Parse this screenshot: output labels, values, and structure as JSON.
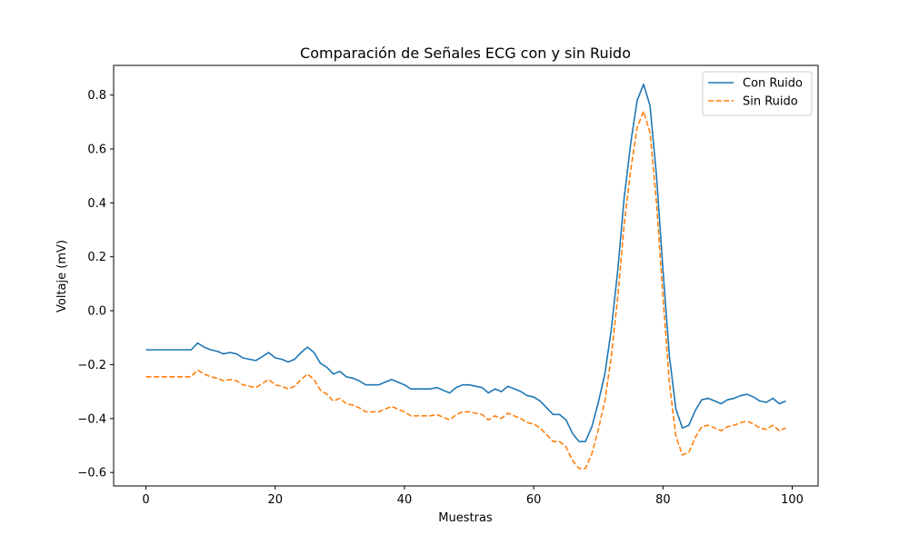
{
  "chart_data": {
    "type": "line",
    "title": "Comparación de Señales ECG con y sin Ruido",
    "xlabel": "Muestras",
    "ylabel": "Voltaje (mV)",
    "xlim": [
      -5,
      104
    ],
    "ylim": [
      -0.65,
      0.91
    ],
    "xticks": [
      0,
      20,
      40,
      60,
      80,
      100
    ],
    "yticks": [
      -0.6,
      -0.4,
      -0.2,
      0.0,
      0.2,
      0.4,
      0.6,
      0.8
    ],
    "ytick_labels": [
      "−0.6",
      "−0.4",
      "−0.2",
      "0.0",
      "0.2",
      "0.4",
      "0.6",
      "0.8"
    ],
    "grid": false,
    "legend_position": "upper right",
    "series": [
      {
        "name": "Con Ruido",
        "color": "#1f77b4",
        "dash": "solid",
        "x": [
          0,
          1,
          2,
          3,
          4,
          5,
          6,
          7,
          8,
          9,
          10,
          11,
          12,
          13,
          14,
          15,
          16,
          17,
          18,
          19,
          20,
          21,
          22,
          23,
          24,
          25,
          26,
          27,
          28,
          29,
          30,
          31,
          32,
          33,
          34,
          35,
          36,
          37,
          38,
          39,
          40,
          41,
          42,
          43,
          44,
          45,
          46,
          47,
          48,
          49,
          50,
          51,
          52,
          53,
          54,
          55,
          56,
          57,
          58,
          59,
          60,
          61,
          62,
          63,
          64,
          65,
          66,
          67,
          68,
          69,
          70,
          71,
          72,
          73,
          74,
          75,
          76,
          77,
          78,
          79,
          80,
          81,
          82,
          83,
          84,
          85,
          86,
          87,
          88,
          89,
          90,
          91,
          92,
          93,
          94,
          95,
          96,
          97,
          98,
          99
        ],
        "y": [
          -0.145,
          -0.145,
          -0.145,
          -0.145,
          -0.145,
          -0.145,
          -0.145,
          -0.145,
          -0.12,
          -0.135,
          -0.145,
          -0.15,
          -0.16,
          -0.155,
          -0.16,
          -0.175,
          -0.18,
          -0.185,
          -0.17,
          -0.155,
          -0.175,
          -0.18,
          -0.19,
          -0.18,
          -0.155,
          -0.135,
          -0.155,
          -0.195,
          -0.21,
          -0.235,
          -0.225,
          -0.245,
          -0.25,
          -0.26,
          -0.275,
          -0.275,
          -0.275,
          -0.265,
          -0.255,
          -0.265,
          -0.275,
          -0.29,
          -0.29,
          -0.29,
          -0.29,
          -0.285,
          -0.295,
          -0.305,
          -0.285,
          -0.275,
          -0.275,
          -0.28,
          -0.285,
          -0.305,
          -0.29,
          -0.3,
          -0.28,
          -0.29,
          -0.3,
          -0.315,
          -0.32,
          -0.335,
          -0.36,
          -0.385,
          -0.385,
          -0.405,
          -0.455,
          -0.485,
          -0.485,
          -0.43,
          -0.34,
          -0.235,
          -0.07,
          0.15,
          0.42,
          0.62,
          0.78,
          0.84,
          0.76,
          0.5,
          0.15,
          -0.17,
          -0.365,
          -0.435,
          -0.425,
          -0.37,
          -0.33,
          -0.325,
          -0.335,
          -0.345,
          -0.33,
          -0.325,
          -0.315,
          -0.31,
          -0.32,
          -0.335,
          -0.34,
          -0.325,
          -0.345,
          -0.335
        ]
      },
      {
        "name": "Sin Ruido",
        "color": "#ff7f0e",
        "dash": "dashed",
        "x": [
          0,
          1,
          2,
          3,
          4,
          5,
          6,
          7,
          8,
          9,
          10,
          11,
          12,
          13,
          14,
          15,
          16,
          17,
          18,
          19,
          20,
          21,
          22,
          23,
          24,
          25,
          26,
          27,
          28,
          29,
          30,
          31,
          32,
          33,
          34,
          35,
          36,
          37,
          38,
          39,
          40,
          41,
          42,
          43,
          44,
          45,
          46,
          47,
          48,
          49,
          50,
          51,
          52,
          53,
          54,
          55,
          56,
          57,
          58,
          59,
          60,
          61,
          62,
          63,
          64,
          65,
          66,
          67,
          68,
          69,
          70,
          71,
          72,
          73,
          74,
          75,
          76,
          77,
          78,
          79,
          80,
          81,
          82,
          83,
          84,
          85,
          86,
          87,
          88,
          89,
          90,
          91,
          92,
          93,
          94,
          95,
          96,
          97,
          98,
          99
        ],
        "y": [
          -0.245,
          -0.245,
          -0.245,
          -0.245,
          -0.245,
          -0.245,
          -0.245,
          -0.245,
          -0.22,
          -0.235,
          -0.245,
          -0.25,
          -0.26,
          -0.255,
          -0.26,
          -0.275,
          -0.28,
          -0.285,
          -0.27,
          -0.255,
          -0.275,
          -0.28,
          -0.29,
          -0.28,
          -0.255,
          -0.235,
          -0.255,
          -0.295,
          -0.31,
          -0.335,
          -0.325,
          -0.345,
          -0.35,
          -0.36,
          -0.375,
          -0.375,
          -0.375,
          -0.365,
          -0.355,
          -0.365,
          -0.375,
          -0.39,
          -0.39,
          -0.39,
          -0.39,
          -0.385,
          -0.395,
          -0.405,
          -0.385,
          -0.375,
          -0.375,
          -0.38,
          -0.385,
          -0.405,
          -0.39,
          -0.4,
          -0.38,
          -0.39,
          -0.4,
          -0.415,
          -0.42,
          -0.435,
          -0.46,
          -0.485,
          -0.485,
          -0.505,
          -0.555,
          -0.585,
          -0.585,
          -0.53,
          -0.44,
          -0.335,
          -0.17,
          0.05,
          0.32,
          0.52,
          0.68,
          0.74,
          0.66,
          0.4,
          0.05,
          -0.27,
          -0.465,
          -0.535,
          -0.525,
          -0.47,
          -0.43,
          -0.425,
          -0.435,
          -0.445,
          -0.43,
          -0.425,
          -0.415,
          -0.41,
          -0.42,
          -0.435,
          -0.44,
          -0.425,
          -0.445,
          -0.435
        ]
      }
    ]
  }
}
